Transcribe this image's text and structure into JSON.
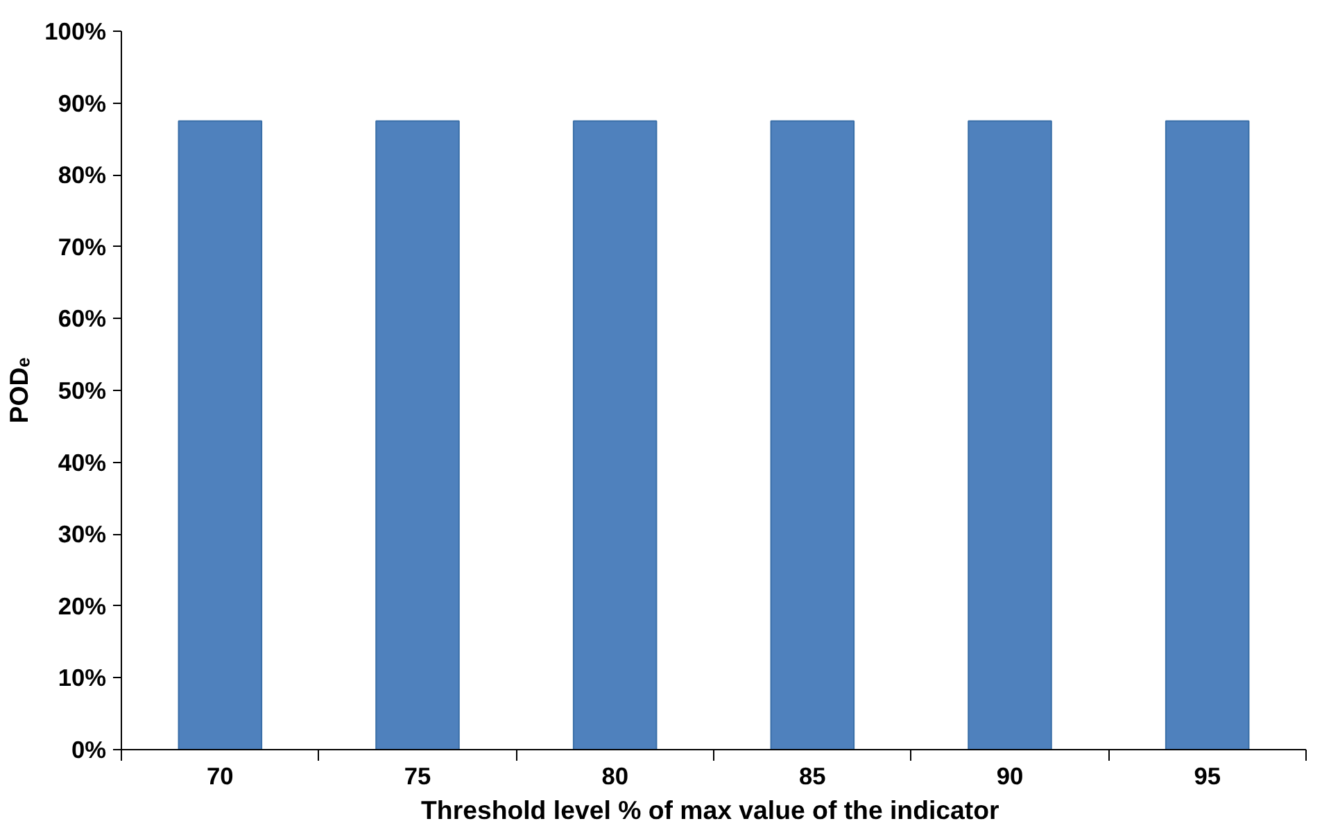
{
  "chart_data": {
    "type": "bar",
    "xlabel": "Threshold  level % of max value of the indicator",
    "ylabel": "PODₑ",
    "categories": [
      "70",
      "75",
      "80",
      "85",
      "90",
      "95"
    ],
    "values": [
      87.5,
      87.5,
      87.5,
      87.5,
      87.5,
      87.5
    ],
    "color": "#4f81bd",
    "ylim": [
      0,
      100
    ],
    "yticks": [
      {
        "value": 0,
        "label": "0%"
      },
      {
        "value": 10,
        "label": "10%"
      },
      {
        "value": 20,
        "label": "20%"
      },
      {
        "value": 30,
        "label": "30%"
      },
      {
        "value": 40,
        "label": "40%"
      },
      {
        "value": 50,
        "label": "50%"
      },
      {
        "value": 60,
        "label": "60%"
      },
      {
        "value": 70,
        "label": "70%"
      },
      {
        "value": 80,
        "label": "80%"
      },
      {
        "value": 90,
        "label": "90%"
      },
      {
        "value": 100,
        "label": "100%"
      }
    ],
    "grid": false
  }
}
